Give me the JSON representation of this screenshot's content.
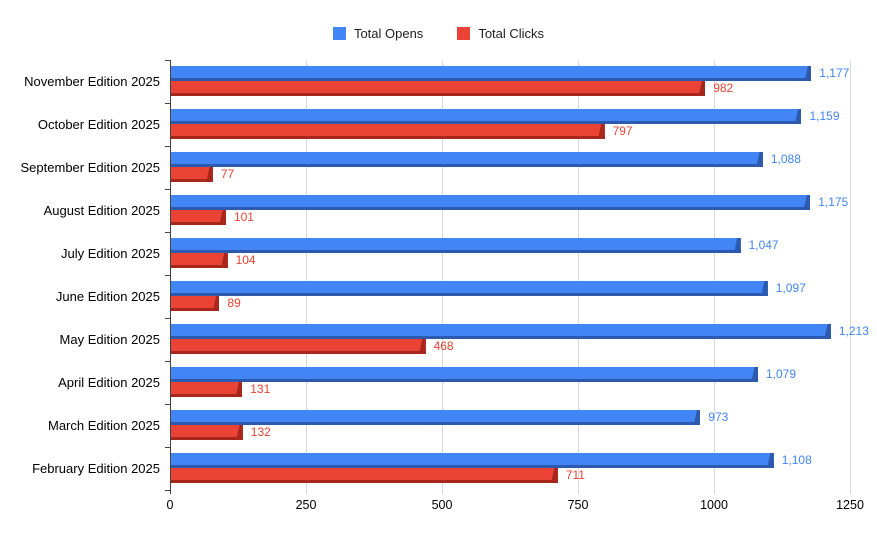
{
  "chart_data": {
    "type": "bar",
    "orientation": "horizontal",
    "title": "",
    "categories": [
      "November Edition 2025",
      "October Edition 2025",
      "September Edition 2025",
      "August Edition 2025",
      "July Edition 2025",
      "June Edition 2025",
      "May Edition 2025",
      "April Edition 2025",
      "March Edition 2025",
      "February Edition 2025"
    ],
    "series": [
      {
        "name": "Total Opens",
        "color": "#4285f4",
        "edge_color": "#2d59ae",
        "label_color": "#4285f4",
        "values": [
          1177,
          1159,
          1088,
          1175,
          1047,
          1097,
          1213,
          1079,
          973,
          1108
        ],
        "labels": [
          "1,177",
          "1,159",
          "1,088",
          "1,175",
          "1,047",
          "1,097",
          "1,213",
          "1,079",
          "973",
          "1,108"
        ]
      },
      {
        "name": "Total Clicks",
        "color": "#ea4335",
        "edge_color": "#a8271c",
        "label_color": "#ea4335",
        "values": [
          982,
          797,
          77,
          101,
          104,
          89,
          468,
          131,
          132,
          711
        ],
        "labels": [
          "982",
          "797",
          "77",
          "101",
          "104",
          "89",
          "468",
          "131",
          "132",
          "711"
        ]
      }
    ],
    "xlim": [
      0,
      1250
    ],
    "x_tick_values": [
      0,
      250,
      500,
      750,
      1000,
      1250
    ],
    "x_tick_labels": [
      "0",
      "250",
      "500",
      "750",
      "1000",
      "1250"
    ],
    "grid": true,
    "legend_position": "top",
    "background_color": "#ffffff",
    "axis_color": "#424242",
    "gridline_color": "#d9d9d9",
    "category_label_color": "#000000"
  }
}
